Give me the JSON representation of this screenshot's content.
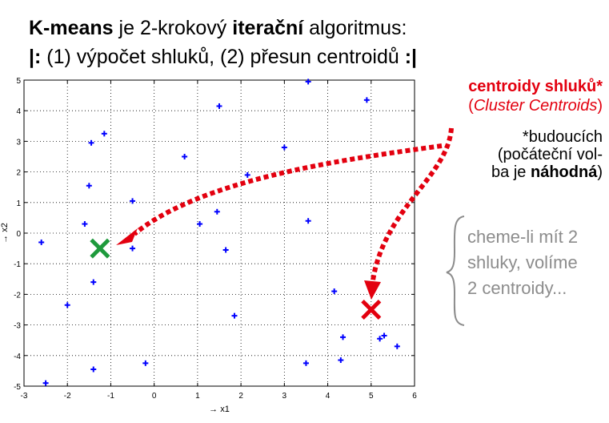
{
  "heading": {
    "line1_bold1": "K-means",
    "line1_mid": " je 2-krokový ",
    "line1_bold2": "iterační",
    "line1_end": " algoritmus:",
    "line2_start": "|:",
    "line2_mid": " (1) výpočet shluků, (2) přesun centroidů ",
    "line2_end": ":|"
  },
  "annotations": {
    "centroids_title": "centroidy shluků*",
    "centroids_sub_open": "(",
    "centroids_sub": "Cluster Centroids",
    "centroids_sub_close": ")",
    "future_line1": "*budoucích",
    "future_line2": "(počáteční vol-",
    "future_line3_a": "ba je ",
    "future_line3_bold": "náhodná",
    "future_line3_b": ")",
    "clusters_line1": "cheme-li mít 2",
    "clusters_line2": "shluky, volíme",
    "clusters_line3": "2 centroidy..."
  },
  "colors": {
    "points": "#0000ff",
    "centroid_green": "#1e9a3c",
    "centroid_red": "#e3000f",
    "arrow": "#e3000f",
    "brace": "#8c8c8c"
  },
  "chart_data": {
    "type": "scatter",
    "xlabel": "→ x1",
    "ylabel": "→ x2",
    "xlim": [
      -3,
      6
    ],
    "ylim": [
      -5,
      5
    ],
    "xticks": [
      -3,
      -2,
      -1,
      0,
      1,
      2,
      3,
      4,
      5,
      6
    ],
    "yticks": [
      -5,
      -4,
      -3,
      -2,
      -1,
      0,
      1,
      2,
      3,
      4,
      5
    ],
    "grid": true,
    "points": [
      {
        "x": 3.55,
        "y": 4.95
      },
      {
        "x": 4.9,
        "y": 4.35
      },
      {
        "x": 1.5,
        "y": 4.15
      },
      {
        "x": -1.15,
        "y": 3.25
      },
      {
        "x": -1.45,
        "y": 2.95
      },
      {
        "x": 3.0,
        "y": 2.8
      },
      {
        "x": 0.7,
        "y": 2.5
      },
      {
        "x": 2.15,
        "y": 1.9
      },
      {
        "x": -1.5,
        "y": 1.55
      },
      {
        "x": -0.5,
        "y": 1.05
      },
      {
        "x": 1.45,
        "y": 0.7
      },
      {
        "x": 3.55,
        "y": 0.4
      },
      {
        "x": -1.6,
        "y": 0.3
      },
      {
        "x": 1.05,
        "y": 0.3
      },
      {
        "x": -2.6,
        "y": -0.3
      },
      {
        "x": -0.5,
        "y": -0.5
      },
      {
        "x": 1.65,
        "y": -0.55
      },
      {
        "x": -1.4,
        "y": -1.6
      },
      {
        "x": 4.15,
        "y": -1.9
      },
      {
        "x": -2.0,
        "y": -2.35
      },
      {
        "x": 1.85,
        "y": -2.7
      },
      {
        "x": 4.35,
        "y": -3.4
      },
      {
        "x": 5.2,
        "y": -3.45
      },
      {
        "x": 5.3,
        "y": -3.35
      },
      {
        "x": 5.6,
        "y": -3.7
      },
      {
        "x": -0.2,
        "y": -4.25
      },
      {
        "x": 3.5,
        "y": -4.25
      },
      {
        "x": 4.3,
        "y": -4.15
      },
      {
        "x": -1.4,
        "y": -4.45
      },
      {
        "x": -2.5,
        "y": -4.9
      }
    ],
    "centroids": [
      {
        "x": -1.25,
        "y": -0.5,
        "color": "green"
      },
      {
        "x": 5.0,
        "y": -2.5,
        "color": "red"
      }
    ]
  }
}
